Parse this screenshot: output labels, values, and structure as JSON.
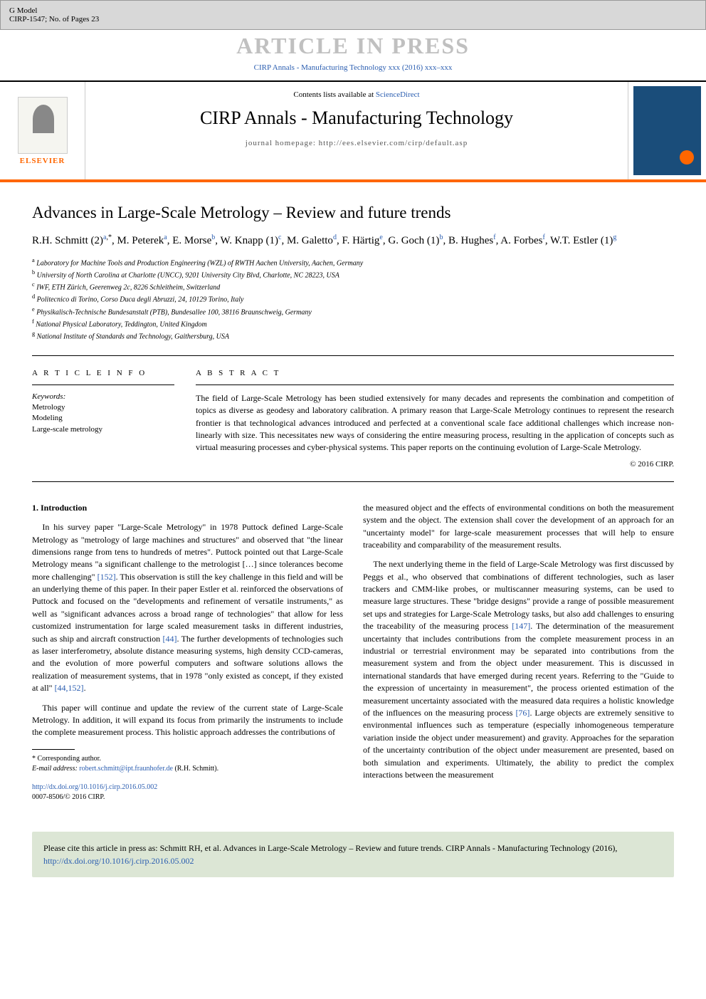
{
  "header": {
    "gmodel": "G Model",
    "docid": "CIRP-1547; No. of Pages 23",
    "press_banner": "ARTICLE IN PRESS",
    "journal_ref": "CIRP Annals - Manufacturing Technology xxx (2016) xxx–xxx"
  },
  "banner": {
    "contents_prefix": "Contents lists available at ",
    "sciencedirect": "ScienceDirect",
    "journal_name": "CIRP Annals - Manufacturing Technology",
    "homepage": "journal homepage: http://ees.elsevier.com/cirp/default.asp",
    "elsevier": "ELSEVIER",
    "cover_label": "Manufacturing Technology"
  },
  "title": "Advances in Large-Scale Metrology – Review and future trends",
  "authors_html": "R.H. Schmitt (2)<sup><a>a</a>,*</sup>, M. Peterek<sup><a>a</a></sup>, E. Morse<sup><a>b</a></sup>, W. Knapp (1)<sup><a>c</a></sup>, M. Galetto<sup><a>d</a></sup>, F. Härtig<sup><a>e</a></sup>, G. Goch (1)<sup><a>b</a></sup>, B. Hughes<sup><a>f</a></sup>, A. Forbes<sup><a>f</a></sup>, W.T. Estler (1)<sup><a>g</a></sup>",
  "affiliations": [
    {
      "sup": "a",
      "text": "Laboratory for Machine Tools and Production Engineering (WZL) of RWTH Aachen University, Aachen, Germany"
    },
    {
      "sup": "b",
      "text": "University of North Carolina at Charlotte (UNCC), 9201 University City Blvd, Charlotte, NC 28223, USA"
    },
    {
      "sup": "c",
      "text": "IWF, ETH Zürich, Geerenweg 2c, 8226 Schleitheim, Switzerland"
    },
    {
      "sup": "d",
      "text": "Politecnico di Torino, Corso Duca degli Abruzzi, 24, 10129 Torino, Italy"
    },
    {
      "sup": "e",
      "text": "Physikalisch-Technische Bundesanstalt (PTB), Bundesallee 100, 38116 Braunschweig, Germany"
    },
    {
      "sup": "f",
      "text": "National Physical Laboratory, Teddington, United Kingdom"
    },
    {
      "sup": "g",
      "text": "National Institute of Standards and Technology, Gaithersburg, USA"
    }
  ],
  "info": {
    "heading": "A R T I C L E  I N F O",
    "keywords_label": "Keywords:",
    "keywords": [
      "Metrology",
      "Modeling",
      "Large-scale metrology"
    ]
  },
  "abstract": {
    "heading": "A B S T R A C T",
    "text": "The field of Large-Scale Metrology has been studied extensively for many decades and represents the combination and competition of topics as diverse as geodesy and laboratory calibration. A primary reason that Large-Scale Metrology continues to represent the research frontier is that technological advances introduced and perfected at a conventional scale face additional challenges which increase non-linearly with size. This necessitates new ways of considering the entire measuring process, resulting in the application of concepts such as virtual measuring processes and cyber-physical systems. This paper reports on the continuing evolution of Large-Scale Metrology.",
    "copyright": "© 2016 CIRP."
  },
  "section1": {
    "heading": "1. Introduction",
    "p1a": "In his survey paper \"Large-Scale Metrology\" in 1978 Puttock defined Large-Scale Metrology as \"metrology of large machines and structures\" and observed that \"the linear dimensions range from tens to hundreds of metres\". Puttock pointed out that Large-Scale Metrology means \"a significant challenge to the metrologist […] since tolerances become more challenging\" ",
    "ref152": "[152]",
    "p1b": ". This observation is still the key challenge in this field and will be an underlying theme of this paper. In their paper Estler et al. reinforced the observations of Puttock and focused on the \"developments and refinement of versatile instruments,\" as well as \"significant advances across a broad range of technologies\" that allow for less customized instrumentation for large scaled measurement tasks in different industries, such as ship and aircraft construction ",
    "ref44": "[44]",
    "p1c": ". The further developments of technologies such as laser interferometry, absolute distance measuring systems, high density CCD-cameras, and the evolution of more powerful computers and software solutions allows the realization of measurement systems, that in 1978 \"only existed as concept, if they existed at all\" ",
    "ref44_152": "[44,152]",
    "p1d": ".",
    "p2": "This paper will continue and update the review of the current state of Large-Scale Metrology. In addition, it will expand its focus from primarily the instruments to include the complete measurement process. This holistic approach addresses the contributions of",
    "p3": "the measured object and the effects of environmental conditions on both the measurement system and the object. The extension shall cover the development of an approach for an \"uncertainty model\" for large-scale measurement processes that will help to ensure traceability and comparability of the measurement results.",
    "p4a": "The next underlying theme in the field of Large-Scale Metrology was first discussed by Peggs et al., who observed that combinations of different technologies, such as laser trackers and CMM-like probes, or multiscanner measuring systems, can be used to measure large structures. These \"bridge designs\" provide a range of possible measurement set ups and strategies for Large-Scale Metrology tasks, but also add challenges to ensuring the traceability of the measuring process ",
    "ref147": "[147]",
    "p4b": ". The determination of the measurement uncertainty that includes contributions from the complete measurement process in an industrial or terrestrial environment may be separated into contributions from the measurement system and from the object under measurement. This is discussed in international standards that have emerged during recent years. Referring to the \"Guide to the expression of uncertainty in measurement\", the process oriented estimation of the measurement uncertainty associated with the measured data requires a holistic knowledge of the influences on the measuring process ",
    "ref76": "[76]",
    "p4c": ". Large objects are extremely sensitive to environmental influences such as temperature (especially inhomogeneous temperature variation inside the object under measurement) and gravity. Approaches for the separation of the uncertainty contribution of the object under measurement are presented, based on both simulation and experiments. Ultimately, the ability to predict the complex interactions between the measurement"
  },
  "footnote": {
    "corresponding": "* Corresponding author.",
    "email_label": "E-mail address: ",
    "email": "robert.schmitt@ipt.fraunhofer.de",
    "email_suffix": " (R.H. Schmitt)."
  },
  "doi": {
    "url": "http://dx.doi.org/10.1016/j.cirp.2016.05.002",
    "issn": "0007-8506/© 2016 CIRP."
  },
  "citebox": {
    "prefix": "Please cite this article in press as: Schmitt RH, et al. Advances in Large-Scale Metrology – Review and future trends. CIRP Annals - Manufacturing Technology (2016), ",
    "url": "http://dx.doi.org/10.1016/j.cirp.2016.05.002"
  },
  "colors": {
    "accent_orange": "#ff6600",
    "link_blue": "#2a5db0",
    "cite_bg": "#dce6d5",
    "header_bg": "#d8d8d8",
    "press_gray": "#c0c0c0"
  }
}
